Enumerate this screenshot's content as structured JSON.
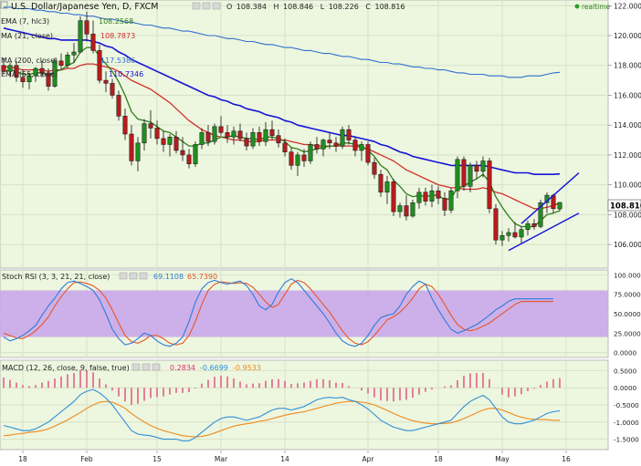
{
  "header": {
    "symbol_title": "U.S. Dollar/Japanese Yen, D, FXCM",
    "ohlc": {
      "O_label": "O",
      "O": "108.384",
      "H_label": "H",
      "H": "108.846",
      "L_label": "L",
      "L": "108.226",
      "C_label": "C",
      "C": "108.816"
    },
    "realtime_label": "realtime"
  },
  "overlays": [
    {
      "label": "EMA (7, hlc3)",
      "value": "108.2568",
      "color": "#2e7d1c"
    },
    {
      "label": "MA (21, close)",
      "value": "108.7873",
      "color": "#d32f2f"
    },
    {
      "label": "MA (200, close)",
      "value": "117.5386",
      "color": "#2f6fd0"
    },
    {
      "label": "EMA (55, close)",
      "value": "110.7346",
      "color": "#1414d8"
    }
  ],
  "stoch": {
    "label": "Stoch RSI (3, 3, 21, 21, close)",
    "k_value": "69.1108",
    "d_value": "65.7390",
    "k_color": "#2f7bd8",
    "d_color": "#e6562a",
    "band_color": "#c9a8ea"
  },
  "macd": {
    "label": "MACD (12, 26, close, 9, false, true)",
    "hist_value": "0.2834",
    "macd_value": "-0.6699",
    "signal_value": "-0.9533",
    "hist_color": "#e0306a",
    "macd_color": "#2f8fd8",
    "signal_color": "#ef8a1e"
  },
  "last_price_tag": "108.816",
  "x_ticks": [
    {
      "i": 3,
      "label": "18"
    },
    {
      "i": 13,
      "label": "Feb"
    },
    {
      "i": 24,
      "label": "15"
    },
    {
      "i": 34,
      "label": "Mar"
    },
    {
      "i": 44,
      "label": "14"
    },
    {
      "i": 57,
      "label": "Apr"
    },
    {
      "i": 68,
      "label": "18"
    },
    {
      "i": 78,
      "label": "May"
    },
    {
      "i": 88,
      "label": "16"
    }
  ],
  "chart_data": {
    "type": "candlestick",
    "symbol": "USD/JPY",
    "timeframe": "D",
    "price_axis": {
      "ticks": [
        "122.000",
        "120.000",
        "118.000",
        "116.000",
        "114.000",
        "112.000",
        "110.000",
        "108.000",
        "106.000"
      ],
      "ylim": [
        104.6,
        122.2
      ]
    },
    "stoch_axis": {
      "ticks": [
        "100.0000",
        "75.0000",
        "50.0000",
        "25.0000",
        "0.0000"
      ],
      "ylim": [
        -4,
        104
      ],
      "band": [
        20,
        80
      ]
    },
    "macd_axis": {
      "ticks": [
        "0.5000",
        "0.0000",
        "-0.5000",
        "-1.0000",
        "-1.5000"
      ],
      "ylim": [
        -1.75,
        0.75
      ]
    },
    "candles": [
      [
        118.0,
        118.5,
        117.4,
        117.6
      ],
      [
        117.6,
        118.2,
        117.2,
        118.0
      ],
      [
        118.0,
        118.3,
        116.9,
        117.2
      ],
      [
        117.2,
        117.7,
        116.5,
        116.9
      ],
      [
        116.9,
        117.5,
        116.4,
        117.3
      ],
      [
        117.3,
        117.9,
        116.9,
        117.8
      ],
      [
        117.8,
        118.3,
        117.2,
        117.5
      ],
      [
        117.5,
        117.8,
        116.3,
        116.6
      ],
      [
        116.6,
        118.5,
        116.5,
        118.3
      ],
      [
        118.3,
        118.8,
        117.7,
        118.0
      ],
      [
        118.0,
        118.9,
        117.8,
        118.7
      ],
      [
        118.7,
        119.5,
        118.2,
        118.9
      ],
      [
        118.9,
        121.3,
        118.8,
        121.0
      ],
      [
        121.0,
        121.6,
        119.6,
        120.1
      ],
      [
        120.1,
        121.0,
        118.8,
        119.0
      ],
      [
        119.0,
        119.4,
        116.8,
        117.0
      ],
      [
        117.0,
        117.6,
        116.2,
        116.8
      ],
      [
        116.8,
        117.1,
        115.8,
        116.0
      ],
      [
        116.0,
        116.3,
        114.3,
        114.6
      ],
      [
        114.6,
        115.1,
        113.0,
        113.4
      ],
      [
        113.4,
        114.0,
        111.3,
        111.6
      ],
      [
        111.6,
        113.2,
        110.9,
        112.8
      ],
      [
        112.8,
        114.4,
        112.3,
        114.1
      ],
      [
        114.1,
        115.0,
        113.1,
        113.8
      ],
      [
        113.8,
        114.3,
        112.7,
        113.1
      ],
      [
        113.1,
        113.6,
        112.2,
        112.7
      ],
      [
        112.7,
        113.4,
        111.9,
        113.2
      ],
      [
        113.2,
        113.6,
        112.1,
        112.3
      ],
      [
        112.3,
        113.2,
        111.6,
        112.0
      ],
      [
        112.0,
        112.4,
        111.1,
        111.4
      ],
      [
        111.4,
        112.9,
        111.2,
        112.7
      ],
      [
        112.7,
        113.8,
        112.4,
        113.5
      ],
      [
        113.5,
        114.0,
        112.6,
        112.9
      ],
      [
        112.9,
        114.1,
        112.7,
        113.9
      ],
      [
        113.9,
        114.6,
        113.3,
        113.5
      ],
      [
        113.5,
        114.0,
        112.8,
        113.2
      ],
      [
        113.2,
        113.9,
        112.7,
        113.6
      ],
      [
        113.6,
        114.1,
        112.9,
        113.1
      ],
      [
        113.1,
        113.5,
        112.3,
        112.6
      ],
      [
        112.6,
        113.8,
        112.4,
        113.5
      ],
      [
        113.5,
        113.9,
        112.6,
        112.9
      ],
      [
        112.9,
        114.2,
        112.6,
        113.7
      ],
      [
        113.7,
        114.3,
        113.0,
        113.3
      ],
      [
        113.3,
        113.7,
        112.5,
        112.8
      ],
      [
        112.8,
        113.1,
        111.9,
        112.2
      ],
      [
        112.2,
        112.5,
        111.0,
        111.3
      ],
      [
        111.3,
        112.2,
        110.6,
        112.0
      ],
      [
        112.0,
        112.4,
        111.2,
        111.6
      ],
      [
        111.6,
        112.9,
        111.4,
        112.7
      ],
      [
        112.7,
        113.2,
        112.1,
        112.4
      ],
      [
        112.4,
        113.1,
        111.9,
        113.0
      ],
      [
        113.0,
        113.5,
        112.4,
        112.8
      ],
      [
        112.8,
        113.2,
        112.2,
        112.6
      ],
      [
        112.6,
        113.9,
        112.4,
        113.7
      ],
      [
        113.7,
        114.0,
        112.7,
        113.0
      ],
      [
        113.0,
        113.2,
        111.9,
        112.3
      ],
      [
        112.3,
        112.9,
        111.6,
        112.7
      ],
      [
        112.7,
        112.9,
        111.3,
        111.5
      ],
      [
        111.5,
        111.8,
        110.4,
        110.7
      ],
      [
        110.7,
        111.0,
        109.2,
        109.5
      ],
      [
        109.5,
        110.6,
        108.7,
        110.2
      ],
      [
        110.2,
        110.4,
        107.9,
        108.2
      ],
      [
        108.2,
        108.8,
        107.8,
        108.6
      ],
      [
        108.6,
        109.3,
        107.6,
        107.9
      ],
      [
        107.9,
        109.0,
        107.8,
        108.8
      ],
      [
        108.8,
        109.8,
        108.4,
        109.5
      ],
      [
        109.5,
        109.8,
        108.6,
        108.9
      ],
      [
        108.9,
        110.0,
        108.5,
        109.6
      ],
      [
        109.6,
        109.9,
        108.7,
        109.1
      ],
      [
        109.1,
        109.5,
        107.9,
        108.3
      ],
      [
        108.3,
        109.8,
        108.1,
        109.6
      ],
      [
        109.6,
        111.9,
        109.1,
        111.7
      ],
      [
        111.7,
        111.9,
        109.6,
        109.9
      ],
      [
        109.9,
        111.5,
        109.5,
        111.3
      ],
      [
        111.3,
        111.6,
        110.4,
        110.9
      ],
      [
        110.9,
        111.9,
        110.5,
        111.6
      ],
      [
        111.6,
        111.8,
        108.1,
        108.4
      ],
      [
        108.4,
        108.7,
        106.0,
        106.3
      ],
      [
        106.3,
        106.9,
        105.9,
        106.6
      ],
      [
        106.6,
        107.1,
        106.2,
        106.8
      ],
      [
        106.8,
        107.5,
        106.4,
        106.5
      ],
      [
        106.5,
        107.2,
        106.1,
        107.0
      ],
      [
        107.0,
        107.6,
        106.6,
        107.4
      ],
      [
        107.4,
        107.7,
        107.0,
        107.2
      ],
      [
        107.2,
        109.0,
        107.1,
        108.8
      ],
      [
        108.8,
        109.5,
        108.1,
        109.3
      ],
      [
        109.3,
        109.4,
        108.1,
        108.4
      ],
      [
        108.384,
        108.846,
        108.226,
        108.816
      ]
    ],
    "ema7": [
      117.6,
      117.7,
      117.6,
      117.4,
      117.4,
      117.5,
      117.5,
      117.3,
      117.6,
      117.7,
      118.0,
      118.2,
      118.9,
      119.2,
      119.2,
      118.6,
      118.1,
      117.6,
      116.9,
      116.0,
      114.9,
      114.4,
      114.3,
      114.2,
      113.9,
      113.6,
      113.5,
      113.2,
      112.9,
      112.6,
      112.6,
      112.8,
      112.8,
      113.0,
      113.2,
      113.2,
      113.3,
      113.2,
      113.1,
      113.1,
      113.0,
      113.2,
      113.2,
      113.1,
      112.9,
      112.5,
      112.4,
      112.2,
      112.3,
      112.4,
      112.5,
      112.6,
      112.6,
      112.8,
      112.8,
      112.7,
      112.6,
      112.3,
      111.9,
      111.3,
      111.0,
      110.3,
      109.9,
      109.4,
      109.2,
      109.3,
      109.2,
      109.3,
      109.3,
      109.0,
      109.1,
      109.8,
      109.9,
      110.2,
      110.4,
      110.7,
      110.2,
      109.2,
      108.5,
      107.9,
      107.4,
      107.2,
      107.2,
      107.2,
      107.6,
      108.0,
      108.1,
      108.26
    ],
    "ma21": [
      117.9,
      117.9,
      117.8,
      117.7,
      117.7,
      117.7,
      117.7,
      117.6,
      117.7,
      117.7,
      117.8,
      117.8,
      118.0,
      118.1,
      118.1,
      118.0,
      117.9,
      117.8,
      117.6,
      117.3,
      117.0,
      116.8,
      116.6,
      116.4,
      116.1,
      115.8,
      115.5,
      115.1,
      114.7,
      114.3,
      114.0,
      113.7,
      113.5,
      113.3,
      113.2,
      113.1,
      113.0,
      113.0,
      112.9,
      112.9,
      112.9,
      113.0,
      113.0,
      113.0,
      113.0,
      112.9,
      112.8,
      112.7,
      112.7,
      112.6,
      112.6,
      112.6,
      112.6,
      112.6,
      112.6,
      112.6,
      112.5,
      112.4,
      112.2,
      112.0,
      111.8,
      111.6,
      111.3,
      111.0,
      110.8,
      110.6,
      110.4,
      110.2,
      110.0,
      109.9,
      109.8,
      109.8,
      109.7,
      109.7,
      109.7,
      109.8,
      109.7,
      109.5,
      109.4,
      109.2,
      109.0,
      108.8,
      108.6,
      108.4,
      108.4,
      108.5,
      108.6,
      108.79
    ],
    "ema55": [
      120.5,
      120.4,
      120.3,
      120.2,
      120.1,
      120.0,
      119.9,
      119.8,
      119.8,
      119.7,
      119.7,
      119.7,
      119.7,
      119.7,
      119.6,
      119.5,
      119.3,
      119.2,
      118.9,
      118.7,
      118.4,
      118.2,
      118.0,
      117.8,
      117.6,
      117.4,
      117.2,
      117.0,
      116.8,
      116.6,
      116.4,
      116.2,
      116.0,
      115.9,
      115.7,
      115.6,
      115.4,
      115.3,
      115.1,
      115.0,
      114.9,
      114.7,
      114.6,
      114.5,
      114.3,
      114.2,
      114.0,
      113.9,
      113.8,
      113.7,
      113.6,
      113.5,
      113.4,
      113.3,
      113.3,
      113.2,
      113.1,
      113.0,
      112.9,
      112.7,
      112.6,
      112.4,
      112.2,
      112.1,
      111.9,
      111.8,
      111.7,
      111.6,
      111.5,
      111.4,
      111.3,
      111.3,
      111.3,
      111.3,
      111.3,
      111.3,
      111.2,
      111.1,
      111.0,
      110.9,
      110.8,
      110.8,
      110.8,
      110.7,
      110.7,
      110.7,
      110.7,
      110.73
    ],
    "ma200": [
      121.9,
      121.9,
      121.8,
      121.8,
      121.8,
      121.7,
      121.7,
      121.6,
      121.6,
      121.5,
      121.5,
      121.4,
      121.4,
      121.3,
      121.3,
      121.2,
      121.1,
      121.1,
      121.0,
      120.9,
      120.9,
      120.8,
      120.7,
      120.7,
      120.6,
      120.5,
      120.5,
      120.4,
      120.3,
      120.3,
      120.2,
      120.1,
      120.0,
      120.0,
      119.9,
      119.8,
      119.8,
      119.7,
      119.6,
      119.6,
      119.5,
      119.4,
      119.4,
      119.3,
      119.2,
      119.2,
      119.1,
      119.0,
      119.0,
      118.9,
      118.8,
      118.8,
      118.7,
      118.6,
      118.6,
      118.5,
      118.4,
      118.4,
      118.3,
      118.2,
      118.2,
      118.1,
      118.1,
      118.0,
      117.9,
      117.9,
      117.8,
      117.8,
      117.7,
      117.7,
      117.6,
      117.5,
      117.5,
      117.4,
      117.4,
      117.4,
      117.3,
      117.3,
      117.3,
      117.2,
      117.2,
      117.2,
      117.3,
      117.3,
      117.3,
      117.4,
      117.5,
      117.54
    ],
    "channel": {
      "upper": [
        [
          81,
          107.4
        ],
        [
          90,
          110.8
        ]
      ],
      "lower": [
        [
          79,
          105.6
        ],
        [
          90,
          108.1
        ]
      ]
    },
    "stoch_k": [
      20,
      15,
      18,
      22,
      28,
      35,
      48,
      60,
      70,
      82,
      90,
      92,
      89,
      85,
      80,
      68,
      50,
      30,
      18,
      10,
      12,
      18,
      25,
      22,
      15,
      10,
      8,
      12,
      20,
      40,
      65,
      82,
      90,
      93,
      90,
      88,
      90,
      92,
      86,
      75,
      60,
      55,
      62,
      78,
      90,
      95,
      90,
      80,
      70,
      60,
      50,
      38,
      25,
      15,
      10,
      8,
      12,
      22,
      35,
      45,
      48,
      50,
      60,
      75,
      85,
      92,
      88,
      70,
      55,
      42,
      30,
      25,
      28,
      32,
      36,
      42,
      48,
      55,
      60,
      66,
      69.11,
      69.11,
      69.11,
      69.11,
      69.11,
      69.11,
      69.11,
      69.11
    ],
    "stoch_d": [
      25,
      22,
      19,
      18,
      22,
      28,
      36,
      46,
      60,
      72,
      82,
      90,
      91,
      89,
      86,
      80,
      70,
      55,
      38,
      22,
      14,
      12,
      16,
      22,
      22,
      18,
      12,
      10,
      12,
      22,
      40,
      62,
      80,
      88,
      91,
      90,
      89,
      90,
      89,
      84,
      75,
      65,
      58,
      62,
      75,
      88,
      93,
      90,
      82,
      72,
      62,
      52,
      40,
      28,
      18,
      12,
      10,
      14,
      22,
      32,
      42,
      46,
      52,
      60,
      70,
      82,
      88,
      85,
      75,
      62,
      48,
      36,
      30,
      28,
      30,
      34,
      38,
      44,
      50,
      56,
      62,
      65.74,
      65.74,
      65.74,
      65.74,
      65.74,
      65.74,
      65.74
    ],
    "macd_line": [
      -1.1,
      -1.15,
      -1.2,
      -1.25,
      -1.25,
      -1.2,
      -1.1,
      -1.0,
      -0.85,
      -0.7,
      -0.55,
      -0.4,
      -0.2,
      -0.1,
      -0.05,
      -0.15,
      -0.3,
      -0.5,
      -0.75,
      -1.0,
      -1.25,
      -1.35,
      -1.38,
      -1.4,
      -1.45,
      -1.5,
      -1.5,
      -1.5,
      -1.55,
      -1.55,
      -1.45,
      -1.3,
      -1.15,
      -1.0,
      -0.9,
      -0.85,
      -0.85,
      -0.9,
      -0.95,
      -0.9,
      -0.85,
      -0.75,
      -0.65,
      -0.6,
      -0.6,
      -0.65,
      -0.6,
      -0.55,
      -0.45,
      -0.35,
      -0.3,
      -0.28,
      -0.3,
      -0.28,
      -0.35,
      -0.4,
      -0.5,
      -0.62,
      -0.78,
      -0.95,
      -1.05,
      -1.15,
      -1.2,
      -1.25,
      -1.25,
      -1.2,
      -1.15,
      -1.1,
      -1.05,
      -1.0,
      -0.95,
      -0.75,
      -0.55,
      -0.4,
      -0.3,
      -0.22,
      -0.35,
      -0.6,
      -0.85,
      -1.0,
      -1.05,
      -1.05,
      -1.0,
      -0.95,
      -0.85,
      -0.75,
      -0.7,
      -0.67
    ],
    "macd_signal": [
      -1.4,
      -1.38,
      -1.35,
      -1.33,
      -1.3,
      -1.28,
      -1.25,
      -1.2,
      -1.12,
      -1.03,
      -0.94,
      -0.83,
      -0.72,
      -0.6,
      -0.5,
      -0.42,
      -0.4,
      -0.42,
      -0.5,
      -0.6,
      -0.75,
      -0.88,
      -1.0,
      -1.1,
      -1.18,
      -1.25,
      -1.3,
      -1.35,
      -1.4,
      -1.42,
      -1.43,
      -1.42,
      -1.38,
      -1.32,
      -1.25,
      -1.18,
      -1.12,
      -1.08,
      -1.05,
      -1.02,
      -0.98,
      -0.95,
      -0.9,
      -0.85,
      -0.8,
      -0.76,
      -0.73,
      -0.7,
      -0.65,
      -0.6,
      -0.55,
      -0.5,
      -0.45,
      -0.42,
      -0.4,
      -0.4,
      -0.42,
      -0.45,
      -0.5,
      -0.58,
      -0.66,
      -0.75,
      -0.83,
      -0.9,
      -0.96,
      -1.0,
      -1.03,
      -1.05,
      -1.05,
      -1.04,
      -1.02,
      -0.97,
      -0.9,
      -0.82,
      -0.73,
      -0.65,
      -0.6,
      -0.6,
      -0.65,
      -0.72,
      -0.8,
      -0.86,
      -0.9,
      -0.92,
      -0.93,
      -0.93,
      -0.95,
      -0.95
    ],
    "macd_hist": [
      0.3,
      0.23,
      0.15,
      0.08,
      0.05,
      0.08,
      0.15,
      0.2,
      0.27,
      0.33,
      0.39,
      0.43,
      0.52,
      0.5,
      0.45,
      0.27,
      0.1,
      -0.08,
      -0.25,
      -0.4,
      -0.5,
      -0.47,
      -0.38,
      -0.3,
      -0.27,
      -0.25,
      -0.2,
      -0.15,
      -0.15,
      -0.13,
      -0.02,
      0.12,
      0.23,
      0.32,
      0.35,
      0.33,
      0.27,
      0.18,
      0.1,
      0.12,
      0.13,
      0.2,
      0.25,
      0.25,
      0.2,
      0.11,
      0.13,
      0.15,
      0.2,
      0.25,
      0.25,
      0.22,
      0.15,
      0.14,
      0.05,
      0.0,
      -0.08,
      -0.17,
      -0.28,
      -0.37,
      -0.39,
      -0.4,
      -0.37,
      -0.35,
      -0.29,
      -0.2,
      -0.12,
      -0.05,
      0.0,
      0.04,
      0.07,
      0.22,
      0.35,
      0.42,
      0.43,
      0.43,
      0.25,
      0.0,
      -0.2,
      -0.28,
      -0.25,
      -0.19,
      -0.1,
      -0.03,
      0.08,
      0.18,
      0.25,
      0.28
    ]
  }
}
